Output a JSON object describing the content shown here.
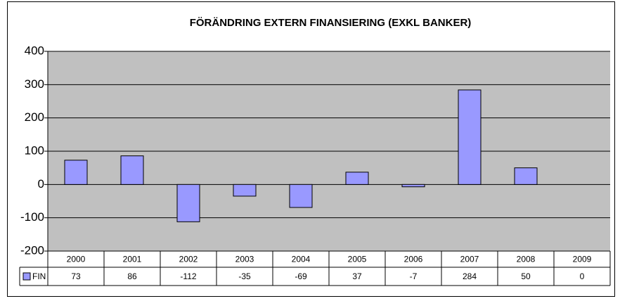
{
  "chart_data": {
    "type": "bar",
    "title": "FÖRÄNDRING EXTERN FINANSIERING (EXKL BANKER)",
    "categories": [
      "2000",
      "2001",
      "2002",
      "2003",
      "2004",
      "2005",
      "2006",
      "2007",
      "2008",
      "2009"
    ],
    "series": [
      {
        "name": "FIN",
        "color": "#9999ff",
        "values": [
          73,
          86,
          -112,
          -35,
          -69,
          37,
          -7,
          284,
          50,
          0
        ]
      }
    ],
    "ylim": [
      -200,
      400
    ],
    "yticks": [
      -200,
      -100,
      0,
      100,
      200,
      300,
      400
    ],
    "grid": true
  }
}
